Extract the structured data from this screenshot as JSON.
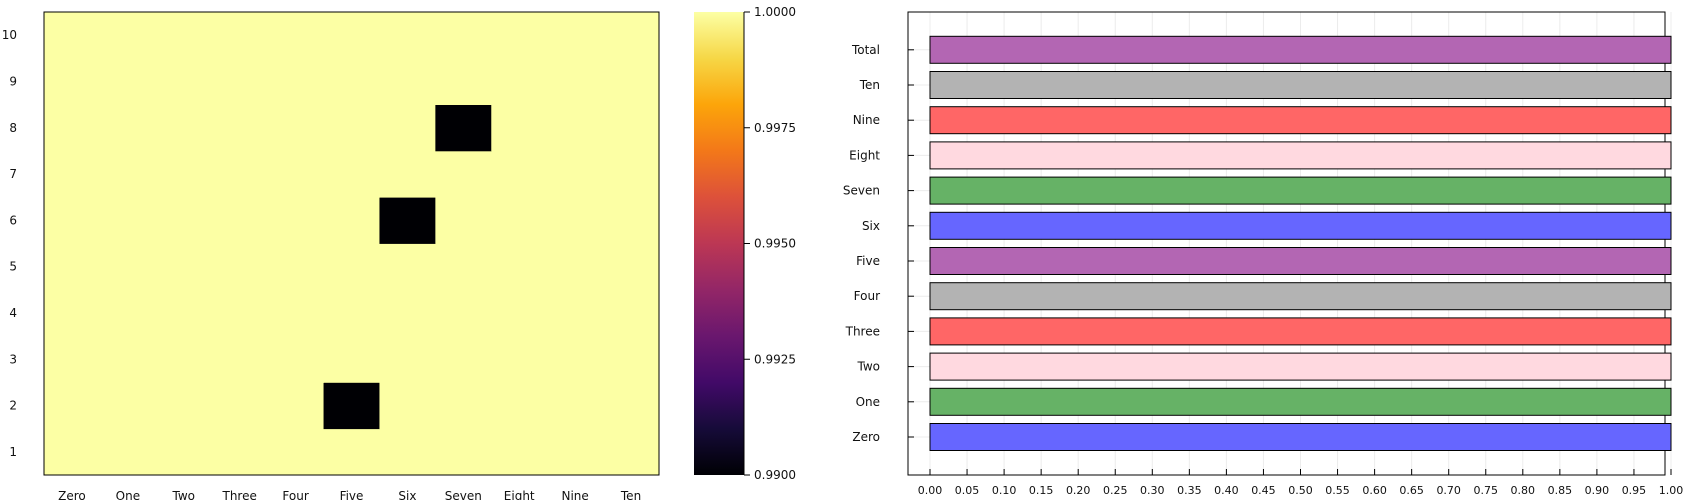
{
  "chart_data": [
    {
      "type": "heatmap",
      "x_categories": [
        "Zero",
        "One",
        "Two",
        "Three",
        "Four",
        "Five",
        "Six",
        "Seven",
        "Eight",
        "Nine",
        "Ten"
      ],
      "y_categories": [
        "1",
        "2",
        "3",
        "4",
        "5",
        "6",
        "7",
        "8",
        "9",
        "10"
      ],
      "values": [
        [
          1,
          1,
          1,
          1,
          1,
          1,
          1,
          1,
          1,
          1,
          1
        ],
        [
          1,
          1,
          1,
          1,
          1,
          0.99,
          1,
          1,
          1,
          1,
          1
        ],
        [
          1,
          1,
          1,
          1,
          1,
          1,
          1,
          1,
          1,
          1,
          1
        ],
        [
          1,
          1,
          1,
          1,
          1,
          1,
          1,
          1,
          1,
          1,
          1
        ],
        [
          1,
          1,
          1,
          1,
          1,
          1,
          1,
          1,
          1,
          1,
          1
        ],
        [
          1,
          1,
          1,
          1,
          1,
          1,
          0.99,
          1,
          1,
          1,
          1
        ],
        [
          1,
          1,
          1,
          1,
          1,
          1,
          1,
          1,
          1,
          1,
          1
        ],
        [
          1,
          1,
          1,
          1,
          1,
          1,
          1,
          0.99,
          1,
          1,
          1
        ],
        [
          1,
          1,
          1,
          1,
          1,
          1,
          1,
          1,
          1,
          1,
          1
        ],
        [
          1,
          1,
          1,
          1,
          1,
          1,
          1,
          1,
          1,
          1,
          1
        ]
      ],
      "colorscale": "inferno",
      "clim": [
        0.99,
        1.0
      ],
      "colorbar_ticks": [
        0.99,
        0.9925,
        0.995,
        0.9975,
        1.0
      ],
      "colorbar_tick_labels": [
        "0.9900",
        "0.9925",
        "0.9950",
        "0.9975",
        "1.0000"
      ]
    },
    {
      "type": "bar",
      "orientation": "horizontal",
      "categories": [
        "Zero",
        "One",
        "Two",
        "Three",
        "Four",
        "Five",
        "Six",
        "Seven",
        "Eight",
        "Nine",
        "Ten",
        "Total"
      ],
      "values": [
        1,
        1,
        1,
        1,
        1,
        1,
        1,
        1,
        1,
        1,
        1,
        1
      ],
      "colors": [
        "#6666ff",
        "#66b266",
        "#ffd9e0",
        "#ff6666",
        "#b3b3b3",
        "#b366b3",
        "#6666ff",
        "#66b266",
        "#ffd9e0",
        "#ff6666",
        "#b3b3b3",
        "#b366b3"
      ],
      "xlim": [
        0,
        1
      ],
      "x_ticks": [
        0,
        0.05,
        0.1,
        0.15,
        0.2,
        0.25,
        0.3,
        0.35,
        0.4,
        0.45,
        0.5,
        0.55,
        0.6,
        0.65,
        0.7,
        0.75,
        0.8,
        0.85,
        0.9,
        0.95,
        1.0
      ],
      "x_tick_labels": [
        "0.00",
        "0.05",
        "0.10",
        "0.15",
        "0.20",
        "0.25",
        "0.30",
        "0.35",
        "0.40",
        "0.45",
        "0.50",
        "0.55",
        "0.60",
        "0.65",
        "0.70",
        "0.75",
        "0.80",
        "0.85",
        "0.90",
        "0.95",
        "1.00"
      ],
      "grid": true
    }
  ]
}
